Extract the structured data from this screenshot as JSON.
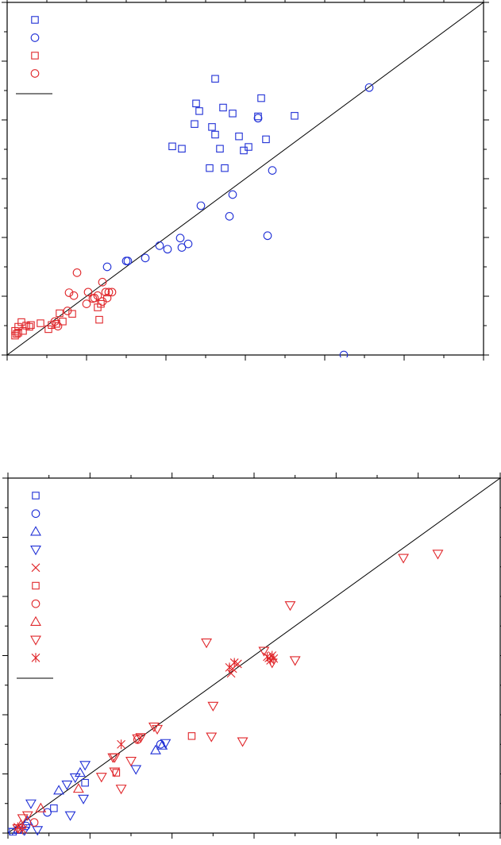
{
  "colors": {
    "blue": "#1f2fd6",
    "red": "#e0262a",
    "axis": "#000000",
    "background": "#ffffff"
  },
  "chart_data": [
    {
      "type": "scatter",
      "title": "",
      "xlabel": "",
      "ylabel": "",
      "xlim": [
        0,
        6
      ],
      "ylim": [
        0,
        6
      ],
      "grid": false,
      "legend_position": "top-left",
      "legend_entries": 5,
      "diagonal_reference_line": true,
      "series": [
        {
          "marker": "square",
          "color": "blue",
          "points": [
            [
              2.62,
              4.7
            ],
            [
              3.2,
              4.37
            ],
            [
              2.38,
              4.28
            ],
            [
              2.72,
              4.21
            ],
            [
              2.42,
              4.15
            ],
            [
              2.84,
              4.11
            ],
            [
              3.16,
              4.06
            ],
            [
              3.62,
              4.07
            ],
            [
              2.36,
              3.93
            ],
            [
              2.58,
              3.88
            ],
            [
              2.62,
              3.75
            ],
            [
              2.92,
              3.72
            ],
            [
              3.26,
              3.67
            ],
            [
              2.08,
              3.55
            ],
            [
              2.2,
              3.51
            ],
            [
              3.04,
              3.54
            ],
            [
              2.68,
              3.51
            ],
            [
              2.98,
              3.48
            ],
            [
              2.55,
              3.18
            ],
            [
              2.74,
              3.18
            ]
          ]
        },
        {
          "marker": "circle",
          "color": "blue",
          "points": [
            [
              4.56,
              4.55
            ],
            [
              3.16,
              4.03
            ],
            [
              3.34,
              3.14
            ],
            [
              2.84,
              2.73
            ],
            [
              2.44,
              2.54
            ],
            [
              2.8,
              2.36
            ],
            [
              1.26,
              1.5
            ],
            [
              1.5,
              1.6
            ],
            [
              1.52,
              1.6
            ],
            [
              1.74,
              1.65
            ],
            [
              1.92,
              1.86
            ],
            [
              2.02,
              1.8
            ],
            [
              2.18,
              1.99
            ],
            [
              2.2,
              1.83
            ],
            [
              2.28,
              1.89
            ],
            [
              3.28,
              2.03
            ],
            [
              4.24,
              0.0
            ]
          ]
        },
        {
          "marker": "square",
          "color": "red",
          "points": [
            [
              0.1,
              0.41
            ],
            [
              0.14,
              0.38
            ],
            [
              0.2,
              0.41
            ],
            [
              0.24,
              0.5
            ],
            [
              0.3,
              0.51
            ],
            [
              0.42,
              0.54
            ],
            [
              0.56,
              0.51
            ],
            [
              0.66,
              0.71
            ],
            [
              0.82,
              0.7
            ],
            [
              1.16,
              0.6
            ],
            [
              0.14,
              0.48
            ],
            [
              0.18,
              0.56
            ],
            [
              0.12,
              0.36
            ],
            [
              0.28,
              0.48
            ],
            [
              0.52,
              0.44
            ],
            [
              0.7,
              0.57
            ],
            [
              1.14,
              0.81
            ],
            [
              1.18,
              0.87
            ],
            [
              0.62,
              0.53
            ],
            [
              0.1,
              0.33
            ]
          ]
        },
        {
          "marker": "circle",
          "color": "red",
          "points": [
            [
              0.88,
              1.4
            ],
            [
              0.78,
              1.06
            ],
            [
              0.84,
              1.01
            ],
            [
              1.02,
              1.07
            ],
            [
              1.08,
              0.96
            ],
            [
              1.2,
              1.24
            ],
            [
              1.24,
              1.07
            ],
            [
              1.28,
              1.07
            ],
            [
              1.32,
              1.07
            ],
            [
              1.26,
              0.97
            ],
            [
              1.14,
              1.01
            ],
            [
              1.0,
              0.87
            ],
            [
              1.2,
              0.91
            ],
            [
              0.64,
              0.49
            ],
            [
              0.6,
              0.57
            ],
            [
              0.76,
              0.75
            ],
            [
              1.1,
              0.97
            ]
          ]
        }
      ],
      "reference_line": [
        [
          0,
          0
        ],
        [
          6,
          6
        ]
      ]
    },
    {
      "type": "scatter",
      "title": "",
      "xlabel": "",
      "ylabel": "",
      "xlim": [
        0,
        6
      ],
      "ylim": [
        0,
        6
      ],
      "grid": false,
      "legend_position": "top-left",
      "legend_entries": 10,
      "diagonal_reference_line": true,
      "series": [
        {
          "marker": "square",
          "color": "blue",
          "points": [
            [
              0.56,
              0.42
            ],
            [
              0.94,
              0.85
            ],
            [
              0.12,
              0.05
            ],
            [
              0.06,
              0.02
            ]
          ]
        },
        {
          "marker": "circle",
          "color": "blue",
          "points": [
            [
              1.86,
              1.5
            ],
            [
              0.48,
              0.35
            ],
            [
              0.22,
              0.12
            ]
          ]
        },
        {
          "marker": "triangle-up",
          "color": "blue",
          "points": [
            [
              1.88,
              1.48
            ],
            [
              1.8,
              1.4
            ],
            [
              0.88,
              1.02
            ],
            [
              0.62,
              0.72
            ],
            [
              0.24,
              0.2
            ]
          ]
        },
        {
          "marker": "triangle-down",
          "color": "blue",
          "points": [
            [
              1.92,
              1.52
            ],
            [
              1.56,
              1.08
            ],
            [
              0.94,
              1.15
            ],
            [
              0.72,
              0.82
            ],
            [
              0.82,
              0.94
            ],
            [
              0.28,
              0.5
            ],
            [
              0.76,
              0.3
            ],
            [
              0.92,
              0.58
            ],
            [
              0.36,
              0.05
            ],
            [
              0.2,
              0.04
            ],
            [
              0.04,
              0.02
            ]
          ]
        },
        {
          "marker": "x",
          "color": "red",
          "points": [
            [
              2.74,
              2.78
            ],
            [
              2.8,
              2.86
            ],
            [
              2.72,
              2.7
            ],
            [
              3.18,
              2.96
            ]
          ]
        },
        {
          "marker": "square",
          "color": "red",
          "points": [
            [
              2.24,
              1.64
            ],
            [
              1.32,
              1.02
            ]
          ]
        },
        {
          "marker": "circle",
          "color": "red",
          "points": [
            [
              1.58,
              1.58
            ],
            [
              0.32,
              0.18
            ]
          ]
        },
        {
          "marker": "triangle-up",
          "color": "red",
          "points": [
            [
              0.86,
              0.75
            ],
            [
              0.4,
              0.42
            ],
            [
              0.16,
              0.14
            ]
          ]
        },
        {
          "marker": "triangle-down",
          "color": "red",
          "points": [
            [
              4.82,
              4.65
            ],
            [
              5.24,
              4.72
            ],
            [
              3.44,
              3.85
            ],
            [
              2.42,
              3.22
            ],
            [
              3.12,
              3.08
            ],
            [
              3.22,
              2.88
            ],
            [
              3.5,
              2.92
            ],
            [
              2.5,
              2.15
            ],
            [
              2.48,
              1.63
            ],
            [
              2.86,
              1.55
            ],
            [
              1.78,
              1.8
            ],
            [
              1.62,
              1.62
            ],
            [
              1.3,
              1.04
            ],
            [
              1.14,
              0.95
            ],
            [
              1.3,
              1.28
            ],
            [
              1.38,
              0.75
            ],
            [
              1.5,
              1.22
            ],
            [
              1.82,
              1.76
            ],
            [
              1.58,
              1.6
            ],
            [
              1.28,
              1.28
            ],
            [
              0.24,
              0.3
            ],
            [
              0.18,
              0.25
            ],
            [
              0.12,
              0.08
            ]
          ]
        },
        {
          "marker": "asterisk",
          "color": "red",
          "points": [
            [
              1.38,
              1.5
            ],
            [
              2.7,
              2.8
            ],
            [
              2.76,
              2.88
            ],
            [
              3.22,
              3.0
            ],
            [
              3.16,
              2.98
            ],
            [
              3.2,
              2.92
            ],
            [
              3.24,
              2.95
            ],
            [
              0.12,
              0.1
            ],
            [
              0.18,
              0.06
            ]
          ]
        }
      ],
      "reference_line": [
        [
          0,
          0
        ],
        [
          6,
          6
        ]
      ]
    }
  ]
}
